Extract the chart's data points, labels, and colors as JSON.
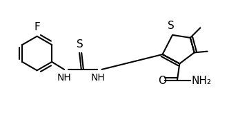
{
  "background_color": "#ffffff",
  "line_color": "#000000",
  "bond_width": 1.5,
  "font_size_label": 10,
  "font_size_atom": 10,
  "figsize": [
    3.45,
    1.86
  ],
  "dpi": 100,
  "xlim": [
    0,
    10
  ],
  "ylim": [
    0,
    5.4
  ]
}
